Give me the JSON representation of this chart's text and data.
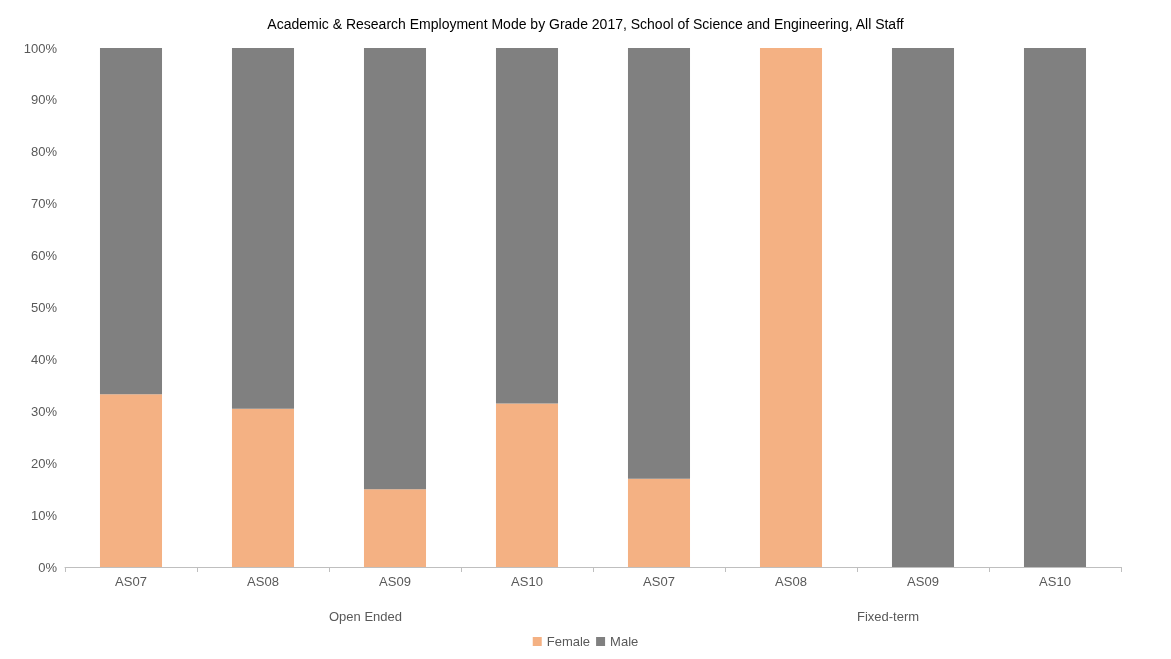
{
  "chart_data": {
    "type": "bar",
    "title": "Academic & Research Employment Mode by Grade 2017, School of Science and Engineering, All Staff",
    "categories": [
      "AS07",
      "AS08",
      "AS09",
      "AS10",
      "AS07",
      "AS08",
      "AS09",
      "AS10"
    ],
    "series": [
      {
        "name": "Female",
        "color": "#f4b183",
        "values": [
          33.3,
          30.5,
          15,
          31.5,
          17,
          100,
          0,
          0
        ]
      },
      {
        "name": "Male",
        "color": "#808080",
        "values": [
          66.7,
          69.5,
          85,
          68.5,
          83,
          0,
          100,
          100
        ]
      }
    ],
    "stacked": true,
    "ylim": [
      0,
      100
    ],
    "yticks": [
      {
        "value": 0,
        "label": "0%"
      },
      {
        "value": 10,
        "label": "10%"
      },
      {
        "value": 20,
        "label": "20%"
      },
      {
        "value": 30,
        "label": "30%"
      },
      {
        "value": 40,
        "label": "40%"
      },
      {
        "value": 50,
        "label": "50%"
      },
      {
        "value": 60,
        "label": "60%"
      },
      {
        "value": 70,
        "label": "70%"
      },
      {
        "value": 80,
        "label": "80%"
      },
      {
        "value": 90,
        "label": "90%"
      },
      {
        "value": 100,
        "label": "100%"
      }
    ],
    "annotations": [
      "Open Ended",
      "Fixed-term"
    ],
    "grid": false,
    "legend": "bottom"
  }
}
